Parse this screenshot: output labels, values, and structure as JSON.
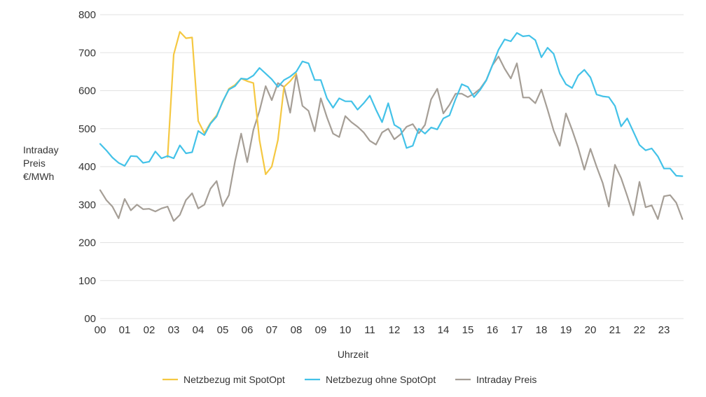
{
  "chart_data": {
    "type": "line",
    "ylabel": [
      "Intraday",
      "Preis",
      "€/MWh"
    ],
    "xlabel": "Uhrzeit",
    "ylim": [
      0,
      800
    ],
    "yticks": [
      "00",
      "100",
      "200",
      "300",
      "400",
      "500",
      "600",
      "700",
      "800"
    ],
    "xticks": [
      "00",
      "01",
      "02",
      "03",
      "04",
      "05",
      "06",
      "07",
      "08",
      "09",
      "10",
      "11",
      "12",
      "13",
      "14",
      "15",
      "16",
      "17",
      "18",
      "19",
      "20",
      "21",
      "22",
      "23"
    ],
    "xlim": [
      0,
      23.75
    ],
    "grid": "horizontal",
    "legend_position": "bottom",
    "series": [
      {
        "name": "Netzbezug mit SpotOpt",
        "color": "#f5c842",
        "x": [
          2.75,
          3.0,
          3.25,
          3.5,
          3.75,
          4.0,
          4.25,
          4.5,
          4.75,
          5.0,
          5.25,
          5.5,
          5.75,
          6.0,
          6.25,
          6.5,
          6.75,
          7.0,
          7.25,
          7.5,
          7.75,
          8.0
        ],
        "values": [
          425,
          695,
          755,
          738,
          740,
          520,
          488,
          515,
          535,
          570,
          605,
          615,
          632,
          625,
          620,
          470,
          380,
          400,
          470,
          610,
          625,
          645
        ]
      },
      {
        "name": "Netzbezug ohne SpotOpt",
        "color": "#43c2e8",
        "x": [
          0,
          0.25,
          0.5,
          0.75,
          1.0,
          1.25,
          1.5,
          1.75,
          2.0,
          2.25,
          2.5,
          2.75,
          3.0,
          3.25,
          3.5,
          3.75,
          4.0,
          4.25,
          4.5,
          4.75,
          5.0,
          5.25,
          5.5,
          5.75,
          6.0,
          6.25,
          6.5,
          6.75,
          7.0,
          7.25,
          7.5,
          7.75,
          8.0,
          8.25,
          8.5,
          8.75,
          9.0,
          9.25,
          9.5,
          9.75,
          10.0,
          10.25,
          10.5,
          10.75,
          11.0,
          11.25,
          11.5,
          11.75,
          12.0,
          12.25,
          12.5,
          12.75,
          13.0,
          13.25,
          13.5,
          13.75,
          14.0,
          14.25,
          14.5,
          14.75,
          15.0,
          15.25,
          15.5,
          15.75,
          16.0,
          16.25,
          16.5,
          16.75,
          17.0,
          17.25,
          17.5,
          17.75,
          18.0,
          18.25,
          18.5,
          18.75,
          19.0,
          19.25,
          19.5,
          19.75,
          20.0,
          20.25,
          20.5,
          20.75,
          21.0,
          21.25,
          21.5,
          21.75,
          22.0,
          22.25,
          22.5,
          22.75,
          23.0,
          23.25,
          23.5,
          23.75
        ],
        "values": [
          460,
          443,
          424,
          410,
          402,
          428,
          427,
          410,
          413,
          440,
          422,
          428,
          422,
          456,
          435,
          438,
          494,
          483,
          513,
          532,
          572,
          603,
          612,
          632,
          630,
          640,
          660,
          645,
          630,
          610,
          628,
          637,
          650,
          677,
          672,
          628,
          628,
          580,
          555,
          580,
          572,
          572,
          550,
          567,
          587,
          550,
          517,
          567,
          510,
          500,
          449,
          455,
          500,
          487,
          503,
          498,
          527,
          535,
          578,
          617,
          610,
          583,
          602,
          627,
          667,
          708,
          735,
          730,
          752,
          743,
          745,
          733,
          688,
          713,
          697,
          645,
          617,
          607,
          640,
          655,
          635,
          590,
          585,
          583,
          560,
          506,
          527,
          492,
          457,
          443,
          448,
          427,
          395,
          395,
          376,
          375
        ]
      },
      {
        "name": "Intraday Preis",
        "color": "#a59e96",
        "x": [
          0,
          0.25,
          0.5,
          0.75,
          1.0,
          1.25,
          1.5,
          1.75,
          2.0,
          2.25,
          2.5,
          2.75,
          3.0,
          3.25,
          3.5,
          3.75,
          4.0,
          4.25,
          4.5,
          4.75,
          5.0,
          5.25,
          5.5,
          5.75,
          6.0,
          6.25,
          6.5,
          6.75,
          7.0,
          7.25,
          7.5,
          7.75,
          8.0,
          8.25,
          8.5,
          8.75,
          9.0,
          9.25,
          9.5,
          9.75,
          10.0,
          10.25,
          10.5,
          10.75,
          11.0,
          11.25,
          11.5,
          11.75,
          12.0,
          12.25,
          12.5,
          12.75,
          13.0,
          13.25,
          13.5,
          13.75,
          14.0,
          14.25,
          14.5,
          14.75,
          15.0,
          15.25,
          15.5,
          15.75,
          16.0,
          16.25,
          16.5,
          16.75,
          17.0,
          17.25,
          17.5,
          17.75,
          18.0,
          18.25,
          18.5,
          18.75,
          19.0,
          19.25,
          19.5,
          19.75,
          20.0,
          20.25,
          20.5,
          20.75,
          21.0,
          21.25,
          21.5,
          21.75,
          22.0,
          22.25,
          22.5,
          22.75,
          23.0,
          23.25,
          23.5,
          23.75
        ],
        "values": [
          338,
          312,
          295,
          264,
          315,
          285,
          300,
          288,
          289,
          282,
          290,
          295,
          257,
          273,
          312,
          330,
          290,
          300,
          342,
          362,
          296,
          325,
          413,
          487,
          412,
          497,
          547,
          612,
          575,
          620,
          610,
          542,
          643,
          560,
          547,
          493,
          580,
          530,
          487,
          478,
          533,
          517,
          505,
          490,
          468,
          458,
          490,
          500,
          472,
          485,
          505,
          512,
          488,
          510,
          577,
          605,
          540,
          563,
          592,
          592,
          583,
          592,
          605,
          628,
          667,
          690,
          658,
          632,
          672,
          582,
          582,
          567,
          603,
          550,
          495,
          455,
          540,
          497,
          450,
          392,
          447,
          400,
          357,
          295,
          405,
          370,
          323,
          272,
          360,
          293,
          298,
          262,
          322,
          325,
          305,
          262
        ]
      }
    ]
  }
}
